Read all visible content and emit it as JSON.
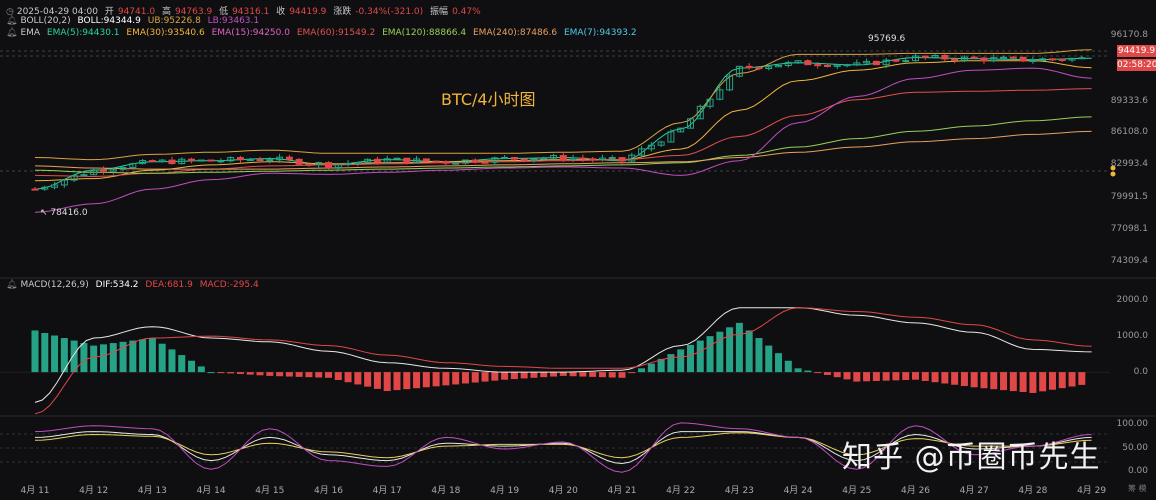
{
  "header": {
    "ohlc": {
      "datetime": "2025-04-29 04:00",
      "open_label": "开",
      "open": "94741.0",
      "high_label": "高",
      "high": "94763.9",
      "low_label": "低",
      "low": "94316.1",
      "close_label": "收",
      "close": "94419.9",
      "change_label": "涨跌",
      "change": "-0.34%(-321.0)",
      "amplitude_label": "振幅",
      "amplitude": "0.47%"
    },
    "boll": {
      "name": "BOLL(20,2)",
      "mid": "BOLL:94344.9",
      "ub": "UB:95226.8",
      "lb": "LB:93463.1"
    },
    "ema": {
      "name": "EMA",
      "items": [
        "EMA(5):94430.1",
        "EMA(30):93540.6",
        "EMA(15):94250.0",
        "EMA(60):91549.2",
        "EMA(120):88866.4",
        "EMA(240):87486.6",
        "EMA(7):94393.2"
      ]
    },
    "macd": {
      "name": "MACD(12,26,9)",
      "dif": "DIF:534.2",
      "dea": "DEA:681.9",
      "macd": "MACD:-295.4"
    }
  },
  "title": "BTC/4小时图",
  "watermark": "知乎 @币圈币先生",
  "price_axis": [
    "96170.8",
    "89333.6",
    "86108.0",
    "82993.4",
    "79991.5",
    "77098.1",
    "74309.4"
  ],
  "current_price": "94419.9",
  "countdown": "02:58:20",
  "annotations": {
    "high": "95769.6",
    "low": "78416.0"
  },
  "macd_axis": [
    "2000.0",
    "1000.0",
    "0.0"
  ],
  "kdj_axis": [
    "100.00",
    "50.00",
    "0.00"
  ],
  "date_axis": [
    "4月 11",
    "4月 12",
    "4月 13",
    "4月 14",
    "4月 15",
    "4月 16",
    "4月 17",
    "4月 18",
    "4月 19",
    "4月 20",
    "4月 21",
    "4月 22",
    "4月 23",
    "4月 24",
    "4月 25",
    "4月 26",
    "4月 27",
    "4月 28",
    "4月 29"
  ],
  "corner_label": "筹 模",
  "colors": {
    "up": "#26a386",
    "down": "#e04848",
    "bg": "#0f0f12",
    "boll_upper": "#d9a441",
    "boll_lower": "#c04fc0",
    "boll_mid": "#e8e8e8",
    "ema5": "#26d4a0",
    "ema30": "#f0b43c",
    "ema15": "#e060c0",
    "ema60": "#e05050",
    "ema120": "#98d058",
    "ema240": "#e8a060",
    "ema7": "#50c8e8"
  },
  "chart_data": [
    {
      "type": "line",
      "title": "BTC/4小时图",
      "x": [
        "4月 11",
        "4月 12",
        "4月 13",
        "4月 14",
        "4月 15",
        "4月 16",
        "4月 17",
        "4月 18",
        "4月 19",
        "4月 20",
        "4月 21",
        "4月 22",
        "4月 23",
        "4月 24",
        "4月 25",
        "4月 26",
        "4月 27",
        "4月 28",
        "4月 29"
      ],
      "ylim": [
        74309.4,
        96170.8
      ],
      "series": [
        {
          "name": "EMA(5)",
          "values": [
            82000,
            83800,
            84600,
            84700,
            84900,
            84300,
            84800,
            84600,
            84900,
            85000,
            84700,
            87700,
            93500,
            94000,
            93800,
            94500,
            94400,
            94300,
            94430
          ]
        },
        {
          "name": "EMA(30)",
          "values": [
            82800,
            83000,
            83800,
            84300,
            84600,
            84400,
            84500,
            84600,
            84700,
            84800,
            84800,
            85800,
            89500,
            92300,
            93300,
            94000,
            94200,
            94200,
            93540
          ]
        },
        {
          "name": "EMA(60)",
          "values": [
            83300,
            83200,
            83500,
            83900,
            84200,
            84300,
            84400,
            84500,
            84600,
            84700,
            84800,
            85200,
            87000,
            89000,
            90500,
            91200,
            91300,
            91400,
            91549
          ]
        },
        {
          "name": "EMA(120)",
          "values": [
            83800,
            83600,
            83500,
            83600,
            83700,
            83800,
            83900,
            84000,
            84100,
            84200,
            84300,
            84500,
            85200,
            86000,
            86800,
            87500,
            88000,
            88500,
            88866
          ]
        },
        {
          "name": "EMA(240)",
          "values": [
            84200,
            84000,
            83900,
            83900,
            83900,
            84000,
            84100,
            84200,
            84300,
            84400,
            84500,
            84600,
            85000,
            85500,
            86000,
            86500,
            86800,
            87200,
            87487
          ]
        }
      ]
    },
    {
      "type": "bar",
      "title": "MACD(12,26,9)",
      "x": [
        "4月 11",
        "4月 12",
        "4月 13",
        "4月 14",
        "4月 15",
        "4月 16",
        "4月 17",
        "4月 18",
        "4月 19",
        "4月 20",
        "4月 21",
        "4月 22",
        "4月 23",
        "4月 24",
        "4月 25",
        "4月 26",
        "4月 27",
        "4月 28",
        "4月 29"
      ],
      "ylim": [
        -1000,
        2300
      ],
      "series": [
        {
          "name": "MACD",
          "values": [
            1100,
            700,
            900,
            0,
            -100,
            -150,
            -500,
            -350,
            -200,
            -100,
            -150,
            600,
            1300,
            100,
            -250,
            -200,
            -400,
            -550,
            -295
          ]
        },
        {
          "name": "DIF",
          "values": [
            -800,
            900,
            1200,
            900,
            800,
            550,
            250,
            100,
            0,
            0,
            50,
            700,
            1700,
            1700,
            1500,
            1300,
            1050,
            600,
            534
          ]
        },
        {
          "name": "DEA",
          "values": [
            -1100,
            400,
            900,
            950,
            850,
            700,
            450,
            250,
            150,
            100,
            100,
            400,
            1000,
            1700,
            1600,
            1450,
            1250,
            850,
            682
          ]
        }
      ]
    },
    {
      "type": "line",
      "x": [
        "4月 11",
        "4月 12",
        "4月 13",
        "4月 14",
        "4月 15",
        "4月 16",
        "4月 17",
        "4月 18",
        "4月 19",
        "4月 20",
        "4月 21",
        "4月 22",
        "4月 23",
        "4月 24",
        "4月 25",
        "4月 26",
        "4月 27",
        "4月 28",
        "4月 29"
      ],
      "ylim": [
        0,
        100
      ],
      "series": [
        {
          "name": "K",
          "values": [
            70,
            80,
            75,
            30,
            70,
            40,
            30,
            60,
            55,
            60,
            25,
            80,
            80,
            70,
            30,
            75,
            50,
            55,
            70
          ]
        },
        {
          "name": "D",
          "values": [
            65,
            75,
            72,
            40,
            60,
            45,
            35,
            55,
            58,
            58,
            35,
            70,
            78,
            70,
            40,
            68,
            55,
            55,
            65
          ]
        },
        {
          "name": "J",
          "values": [
            80,
            90,
            85,
            15,
            85,
            30,
            20,
            70,
            50,
            62,
            10,
            95,
            85,
            70,
            15,
            90,
            40,
            55,
            75
          ]
        }
      ]
    }
  ]
}
